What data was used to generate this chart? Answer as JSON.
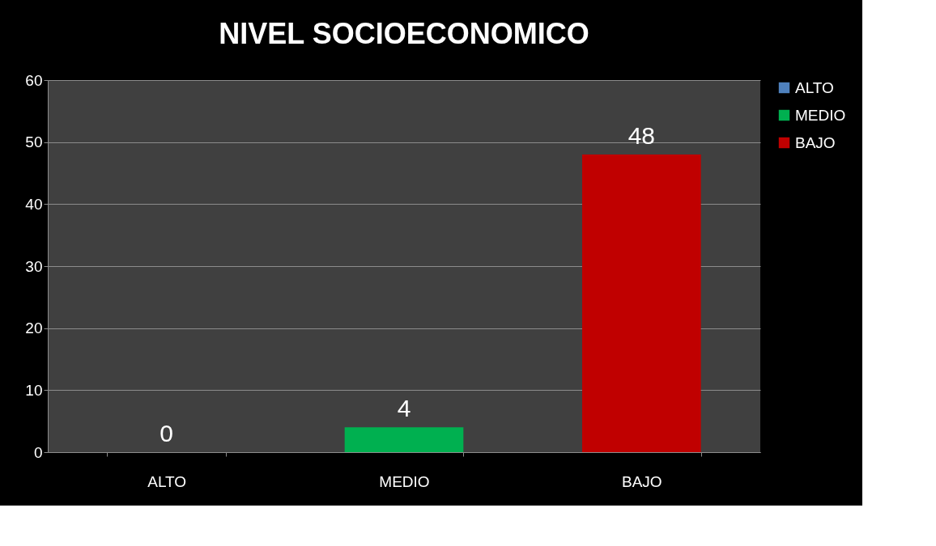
{
  "chart_data": {
    "type": "bar",
    "title": "NIVEL SOCIOECONOMICO",
    "categories": [
      "ALTO",
      "MEDIO",
      "BAJO"
    ],
    "series": [
      {
        "name": "ALTO",
        "color": "#4f81bd",
        "values": [
          0,
          null,
          null
        ]
      },
      {
        "name": "MEDIO",
        "color": "#00b050",
        "values": [
          null,
          4,
          null
        ]
      },
      {
        "name": "BAJO",
        "color": "#c00000",
        "values": [
          null,
          null,
          48
        ]
      }
    ],
    "ylim": [
      0,
      60
    ],
    "yticks": [
      0,
      10,
      20,
      30,
      40,
      50,
      60
    ],
    "grid": "y",
    "legend": "right",
    "data_labels": true
  }
}
